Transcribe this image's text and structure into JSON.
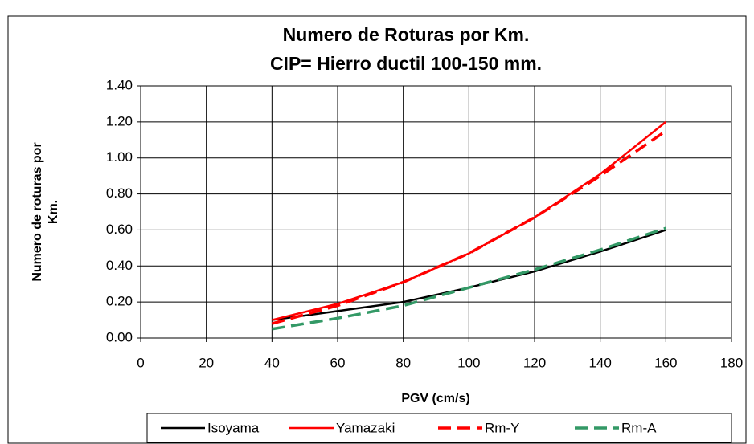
{
  "chart_data": {
    "type": "line",
    "title_lines": [
      "Numero de Roturas por Km.",
      "CIP= Hierro ductil 100-150  mm."
    ],
    "xlabel": "PGV (cm/s)",
    "ylabel_lines": [
      "Numero de roturas por",
      "Km."
    ],
    "x": [
      40,
      60,
      80,
      100,
      120,
      140,
      160
    ],
    "series": [
      {
        "name": "Isoyama",
        "color": "#000000",
        "dash": false,
        "values": [
          0.1,
          0.15,
          0.2,
          0.28,
          0.37,
          0.48,
          0.6
        ]
      },
      {
        "name": "Yamazaki",
        "color": "#ff0000",
        "dash": false,
        "values": [
          0.1,
          0.19,
          0.31,
          0.47,
          0.67,
          0.91,
          1.2
        ]
      },
      {
        "name": "Rm-Y",
        "color": "#ff0000",
        "dash": true,
        "values": [
          0.08,
          0.18,
          0.31,
          0.47,
          0.67,
          0.9,
          1.15
        ]
      },
      {
        "name": "Rm-A",
        "color": "#339966",
        "dash": true,
        "values": [
          0.05,
          0.11,
          0.18,
          0.28,
          0.38,
          0.49,
          0.61
        ]
      }
    ],
    "xlim": [
      0,
      180
    ],
    "xticks": [
      0,
      20,
      40,
      60,
      80,
      100,
      120,
      140,
      160,
      180
    ],
    "ylim": [
      0,
      1.4
    ],
    "yticks": [
      {
        "value": 0,
        "label": "0.00"
      },
      {
        "value": 0.2,
        "label": "0.20"
      },
      {
        "value": 0.4,
        "label": "0.40"
      },
      {
        "value": 0.6,
        "label": "0.60"
      },
      {
        "value": 0.8,
        "label": "0.80"
      },
      {
        "value": 1.0,
        "label": "1.00"
      },
      {
        "value": 1.2,
        "label": "1.20"
      },
      {
        "value": 1.4,
        "label": "1.40"
      }
    ],
    "grid": true,
    "legend": "bottom"
  }
}
